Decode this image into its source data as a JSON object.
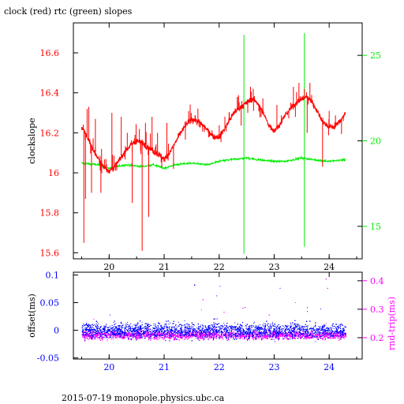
{
  "title": "clock (red) rtc (green) slopes",
  "footer": "2015-07-19  monopole.physics.ubc.ca",
  "colors": {
    "clock": "#ff0000",
    "rtc": "#00ee00",
    "offset": "#0000ff",
    "rnd_trip": "#ff00ff",
    "axes": "#000000"
  },
  "chart_data": [
    {
      "type": "line",
      "name": "slopes",
      "xlabel": "",
      "ylabel": "clockslope",
      "y2label": "",
      "xlim": [
        19.35,
        24.6
      ],
      "ylim": [
        15.57,
        16.75
      ],
      "y2lim": [
        13.1,
        26.9
      ],
      "xticks": [
        20,
        21,
        22,
        23,
        24
      ],
      "yticks": [
        15.6,
        15.8,
        16,
        16.2,
        16.4,
        16.6
      ],
      "yticklabels": [
        "15.6",
        "15.8",
        "16",
        "16.2",
        "16.4",
        "16.6"
      ],
      "y2ticks": [
        15,
        20,
        25
      ],
      "series": [
        {
          "name": "clock",
          "axis": "left",
          "x": [
            19.5,
            19.6,
            19.7,
            19.8,
            19.9,
            20.0,
            20.1,
            20.2,
            20.3,
            20.4,
            20.5,
            20.6,
            20.7,
            20.8,
            20.9,
            21.0,
            21.1,
            21.2,
            21.3,
            21.4,
            21.5,
            21.6,
            21.7,
            21.8,
            21.9,
            22.0,
            22.1,
            22.2,
            22.3,
            22.4,
            22.5,
            22.6,
            22.7,
            22.8,
            22.9,
            23.0,
            23.1,
            23.2,
            23.3,
            23.4,
            23.5,
            23.6,
            23.7,
            23.8,
            23.9,
            24.0,
            24.1,
            24.2,
            24.3
          ],
          "y": [
            16.23,
            16.18,
            16.12,
            16.07,
            16.03,
            16.01,
            16.03,
            16.07,
            16.11,
            16.14,
            16.16,
            16.15,
            16.13,
            16.11,
            16.09,
            16.07,
            16.1,
            16.15,
            16.2,
            16.24,
            16.27,
            16.26,
            16.24,
            16.21,
            16.18,
            16.18,
            16.22,
            16.27,
            16.31,
            16.33,
            16.35,
            16.37,
            16.35,
            16.3,
            16.24,
            16.21,
            16.24,
            16.29,
            16.32,
            16.35,
            16.37,
            16.38,
            16.35,
            16.3,
            16.25,
            16.23,
            16.23,
            16.26,
            16.3
          ],
          "spikes": [
            {
              "x": 19.54,
              "y": 15.65
            },
            {
              "x": 19.57,
              "y": 15.87
            },
            {
              "x": 19.6,
              "y": 16.32
            },
            {
              "x": 19.63,
              "y": 16.33
            },
            {
              "x": 19.68,
              "y": 15.9
            },
            {
              "x": 19.75,
              "y": 16.27
            },
            {
              "x": 19.85,
              "y": 15.9
            },
            {
              "x": 20.05,
              "y": 16.3
            },
            {
              "x": 20.22,
              "y": 16.28
            },
            {
              "x": 20.33,
              "y": 16.2
            },
            {
              "x": 20.42,
              "y": 15.85
            },
            {
              "x": 20.55,
              "y": 16.22
            },
            {
              "x": 20.6,
              "y": 15.61
            },
            {
              "x": 20.66,
              "y": 16.25
            },
            {
              "x": 20.72,
              "y": 15.78
            },
            {
              "x": 20.78,
              "y": 16.28
            },
            {
              "x": 20.84,
              "y": 16.13
            },
            {
              "x": 20.88,
              "y": 16.2
            },
            {
              "x": 20.92,
              "y": 16.1
            },
            {
              "x": 21.05,
              "y": 16.25
            },
            {
              "x": 21.17,
              "y": 16.02
            },
            {
              "x": 22.35,
              "y": 16.38
            },
            {
              "x": 22.52,
              "y": 16.3
            },
            {
              "x": 22.57,
              "y": 16.43
            },
            {
              "x": 22.62,
              "y": 16.42
            },
            {
              "x": 23.05,
              "y": 16.34
            },
            {
              "x": 23.35,
              "y": 16.43
            },
            {
              "x": 23.45,
              "y": 16.45
            },
            {
              "x": 23.55,
              "y": 16.42
            },
            {
              "x": 23.6,
              "y": 16.2
            },
            {
              "x": 23.65,
              "y": 16.45
            },
            {
              "x": 23.72,
              "y": 16.32
            },
            {
              "x": 23.88,
              "y": 16.03
            },
            {
              "x": 24.0,
              "y": 16.31
            }
          ]
        },
        {
          "name": "rtc",
          "axis": "right",
          "x": [
            19.5,
            19.8,
            20.0,
            20.3,
            20.6,
            20.8,
            21.0,
            21.2,
            21.5,
            21.8,
            22.0,
            22.2,
            22.5,
            22.7,
            23.0,
            23.2,
            23.5,
            23.7,
            24.0,
            24.3
          ],
          "y": [
            18.7,
            18.6,
            18.4,
            18.6,
            18.5,
            18.6,
            18.4,
            18.6,
            18.7,
            18.6,
            18.8,
            18.9,
            19.0,
            18.9,
            18.8,
            18.8,
            19.0,
            18.9,
            18.8,
            18.9
          ],
          "spikes": [
            {
              "x": 22.45,
              "y": 26.2
            },
            {
              "x": 22.45,
              "y": 13.4
            },
            {
              "x": 23.55,
              "y": 26.3
            },
            {
              "x": 23.55,
              "y": 13.8
            }
          ]
        }
      ]
    },
    {
      "type": "scatter",
      "name": "offset",
      "xlabel": "",
      "ylabel": "offset(ms)",
      "y2label": "rnd-trip(ms)",
      "xlim": [
        19.35,
        24.6
      ],
      "ylim": [
        -0.052,
        0.105
      ],
      "y2lim": [
        0.125,
        0.43
      ],
      "xticks": [
        20,
        21,
        22,
        23,
        24
      ],
      "yticks": [
        -0.05,
        0,
        0.05,
        0.1
      ],
      "yticklabels": [
        "-0.05",
        "0",
        "0.05",
        "0.1"
      ],
      "y2ticks": [
        0.2,
        0.3,
        0.4
      ],
      "series": [
        {
          "name": "offset",
          "axis": "left",
          "center": 0.0,
          "spread": 0.025,
          "x_range": [
            19.5,
            24.3
          ]
        },
        {
          "name": "rnd-trip",
          "axis": "right",
          "center": 0.21,
          "spread": 0.02,
          "x_range": [
            19.5,
            24.3
          ]
        }
      ]
    }
  ]
}
